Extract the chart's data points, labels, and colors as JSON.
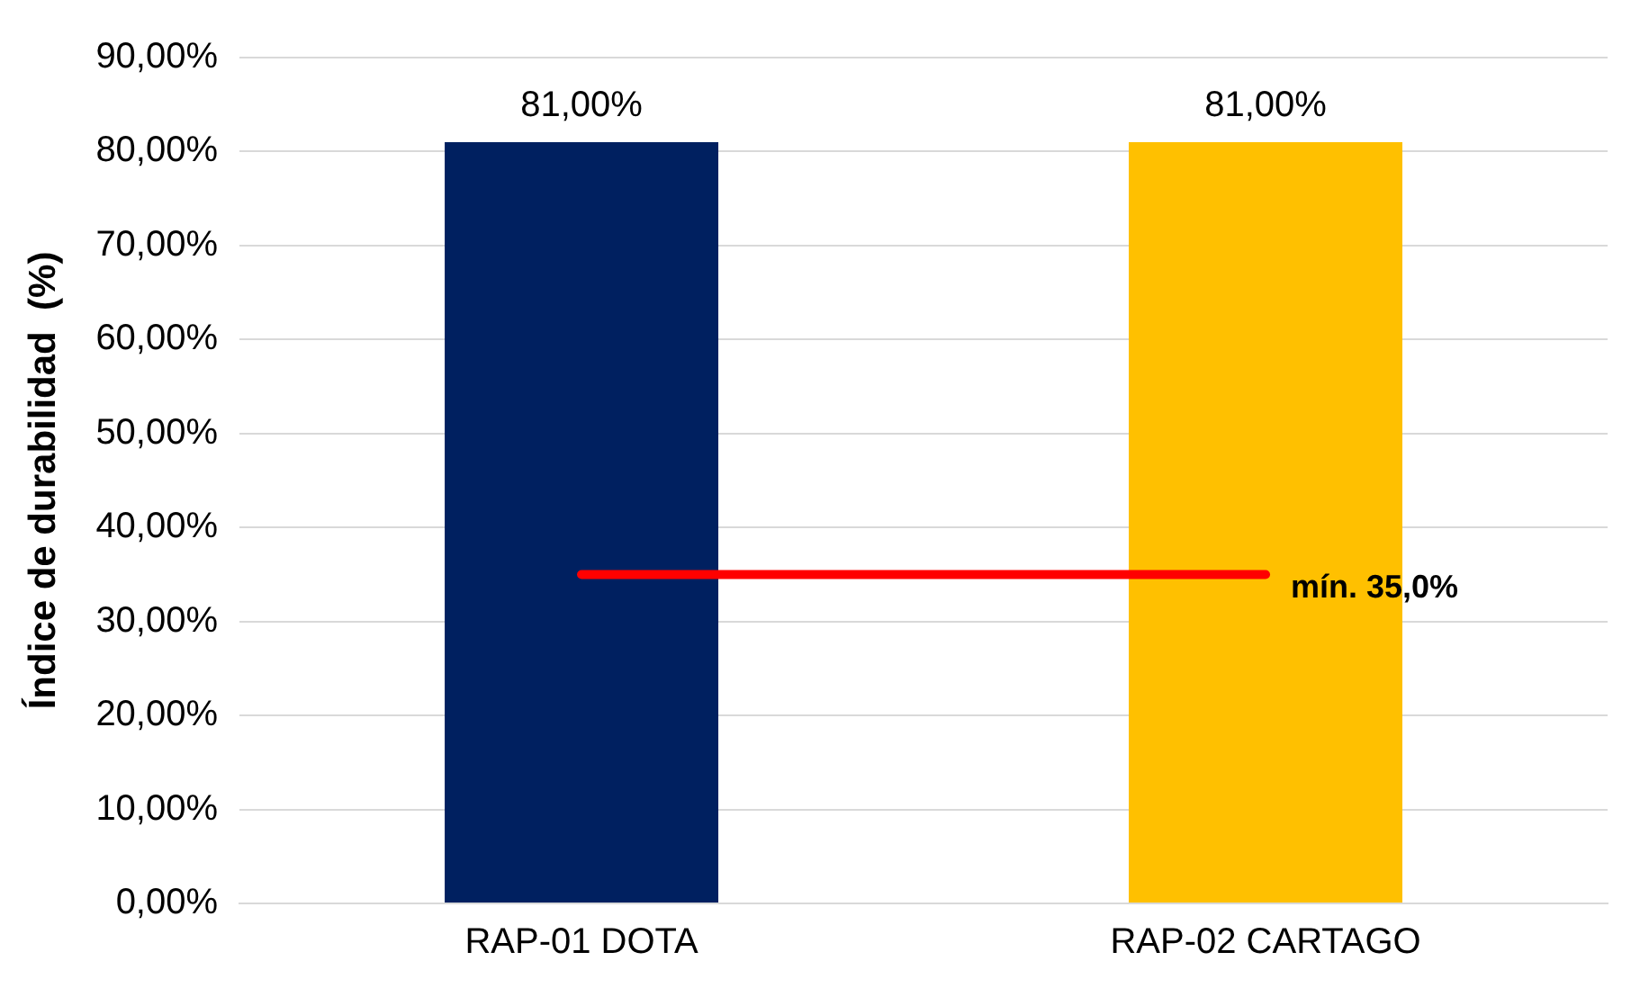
{
  "chart_data": {
    "type": "bar",
    "ylabel": "Índice de durabilidad  (%)",
    "categories": [
      "RAP-01 DOTA",
      "RAP-02 CARTAGO"
    ],
    "values": [
      81,
      81
    ],
    "colors": [
      "#002060",
      "#ffc000"
    ],
    "value_labels": [
      "81,00%",
      "81,00%"
    ],
    "ylim": [
      0,
      90
    ],
    "yticks": [
      {
        "value": 0,
        "label": "0,00%"
      },
      {
        "value": 10,
        "label": "10,00%"
      },
      {
        "value": 20,
        "label": "20,00%"
      },
      {
        "value": 30,
        "label": "30,00%"
      },
      {
        "value": 40,
        "label": "40,00%"
      },
      {
        "value": 50,
        "label": "50,00%"
      },
      {
        "value": 60,
        "label": "60,00%"
      },
      {
        "value": 70,
        "label": "70,00%"
      },
      {
        "value": 80,
        "label": "80,00%"
      },
      {
        "value": 90,
        "label": "90,00%"
      }
    ],
    "grid": "y",
    "ref_lines": [
      {
        "axis": "y",
        "value": 35,
        "label": "mín. 35,0%",
        "color": "#ff0000"
      }
    ]
  }
}
